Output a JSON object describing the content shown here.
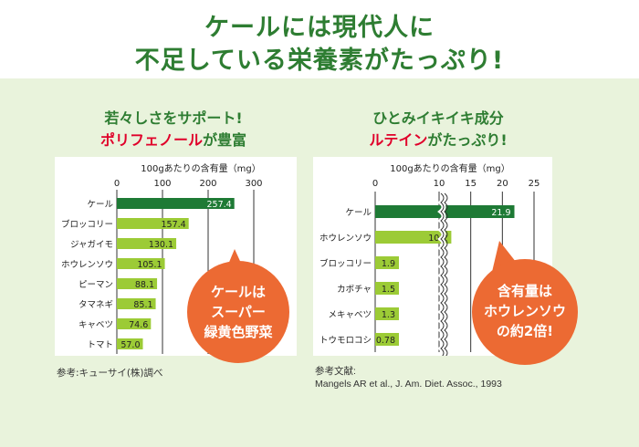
{
  "headline": {
    "line1": "ケールには現代人に",
    "line2": "不足している栄養素がたっぷり!"
  },
  "left_panel": {
    "subtitle_line1": "若々しさをサポート!",
    "subtitle_line2_red": "ポリフェノール",
    "subtitle_line2_rest": "が豊富",
    "bubble": [
      "ケールは",
      "スーパー",
      "緑黄色野菜"
    ],
    "source": "参考:キューサイ(株)調べ"
  },
  "right_panel": {
    "subtitle_line1": "ひとみイキイキ成分",
    "subtitle_line2_red": "ルテイン",
    "subtitle_line2_rest": "がたっぷり!",
    "bubble": [
      "含有量は",
      "ホウレンソウ",
      "の約2倍!"
    ],
    "source_line1": "参考文献:",
    "source_line2": "Mangels AR et al., J. Am. Diet. Assoc., 1993"
  },
  "colors": {
    "dark_green": "#1e7a35",
    "light_green": "#9ccb36",
    "bubble_orange": "#ec6a33",
    "headline_green": "#2e7d32",
    "panel_bg": "#e9f3dc"
  },
  "chart_data": [
    {
      "type": "bar",
      "orientation": "horizontal",
      "title": "100gあたりの含有量（mg）",
      "categories": [
        "ケール",
        "ブロッコリー",
        "ジャガイモ",
        "ホウレンソウ",
        "ピーマン",
        "タマネギ",
        "キャベツ",
        "トマト"
      ],
      "values": [
        257.4,
        157.4,
        130.1,
        105.1,
        88.1,
        85.1,
        74.6,
        57.0
      ],
      "value_labels": [
        "257.4",
        "157.4",
        "130.1",
        "105.1",
        "88.1",
        "85.1",
        "74.6",
        "57.0"
      ],
      "xticks": [
        "0",
        "100",
        "200",
        "300"
      ],
      "xlim": [
        0,
        300
      ],
      "grid": true
    },
    {
      "type": "bar",
      "orientation": "horizontal",
      "title": "100gあたりの含有量（mg）",
      "categories": [
        "ケール",
        "ホウレンソウ",
        "ブロッコリー",
        "カボチャ",
        "メキャベツ",
        "トウモロコシ"
      ],
      "values": [
        21.9,
        10.2,
        1.9,
        1.5,
        1.3,
        0.78
      ],
      "value_labels": [
        "21.9",
        "10.2",
        "1.9",
        "1.5",
        "1.3",
        "0.78"
      ],
      "xticks": [
        "0",
        "10",
        "15",
        "20",
        "25"
      ],
      "axis_break": "between 0 and 10",
      "xlim": [
        0,
        25
      ],
      "grid": true
    }
  ]
}
